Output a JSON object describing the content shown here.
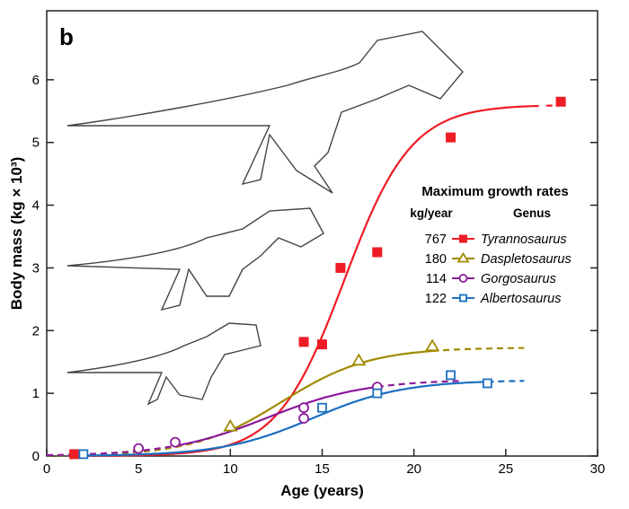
{
  "panel_label": "b",
  "chart_data": {
    "type": "scatter",
    "xlabel": "Age (years)",
    "ylabel": "Body mass (kg × 10³)",
    "xlim": [
      0,
      30
    ],
    "ylim": [
      0,
      7.1
    ],
    "xticks": [
      0,
      5,
      10,
      15,
      20,
      25,
      30
    ],
    "yticks": [
      0,
      1,
      2,
      3,
      4,
      5,
      6
    ],
    "grid": false,
    "legend": {
      "placement": "right",
      "title": "Maximum growth rates",
      "col1_header": "kg/year",
      "col2_header": "Genus"
    },
    "series": [
      {
        "name": "Tyrannosaurus",
        "rate": "767",
        "color": "#ee1c25",
        "marker": "filled-square",
        "points": [
          [
            1.5,
            0.03
          ],
          [
            14,
            1.82
          ],
          [
            15,
            1.78
          ],
          [
            16,
            3.0
          ],
          [
            18,
            3.25
          ],
          [
            22,
            5.08
          ],
          [
            28,
            5.65
          ]
        ],
        "fit": {
          "asymptote": 5.6,
          "k": 0.548,
          "inflection": 16.2
        }
      },
      {
        "name": "Daspletosaurus",
        "rate": "180",
        "color": "#a08a00",
        "marker": "open-triangle",
        "points": [
          [
            10,
            0.47
          ],
          [
            17,
            1.52
          ],
          [
            21,
            1.75
          ]
        ],
        "fit": {
          "asymptote": 1.73,
          "k": 0.416,
          "inflection": 12.8
        }
      },
      {
        "name": "Gorgosaurus",
        "rate": "114",
        "color": "#8b1a9a",
        "marker": "open-circle",
        "points": [
          [
            5,
            0.12
          ],
          [
            7,
            0.22
          ],
          [
            14,
            0.6
          ],
          [
            14,
            0.77
          ],
          [
            18,
            1.1
          ]
        ],
        "fit": {
          "asymptote": 1.22,
          "k": 0.374,
          "inflection": 12.0
        }
      },
      {
        "name": "Albertosaurus",
        "rate": "122",
        "color": "#1a6fc0",
        "marker": "open-square",
        "points": [
          [
            2,
            0.03
          ],
          [
            15,
            0.77
          ],
          [
            18,
            1.0
          ],
          [
            22,
            1.29
          ],
          [
            24,
            1.16
          ]
        ],
        "fit": {
          "asymptote": 1.21,
          "k": 0.403,
          "inflection": 14.5
        }
      }
    ]
  }
}
